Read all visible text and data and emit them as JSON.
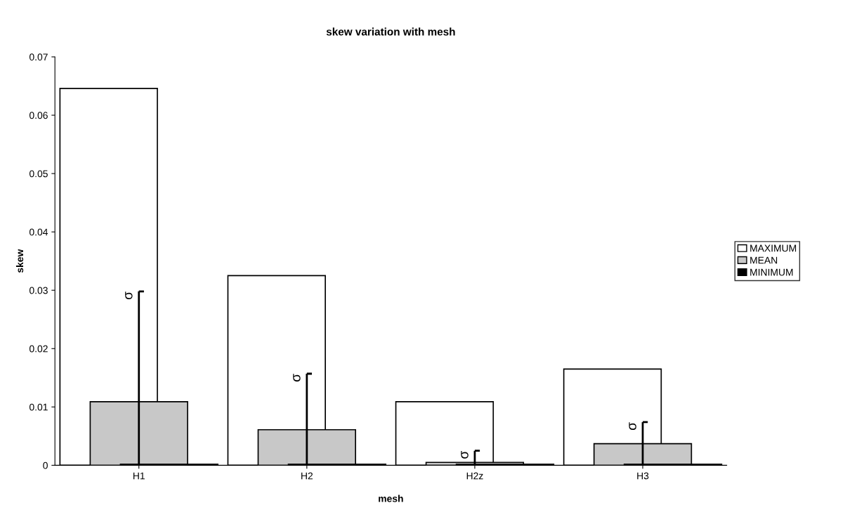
{
  "chart_data": {
    "type": "bar",
    "title": "skew variation with mesh",
    "xlabel": "mesh",
    "ylabel": "skew",
    "categories": [
      "H1",
      "H2",
      "H2z",
      "H3"
    ],
    "series": [
      {
        "name": "MAXIMUM",
        "color": "#ffffff",
        "values": [
          0.0646,
          0.0325,
          0.0109,
          0.0165
        ]
      },
      {
        "name": "MEAN",
        "color": "#c8c8c8",
        "values": [
          0.0109,
          0.0061,
          0.0005,
          0.0037
        ],
        "errors": [
          [
            0,
            0.0298
          ],
          [
            0,
            0.0157
          ],
          [
            0,
            0.0025
          ],
          [
            0,
            0.0074
          ]
        ]
      },
      {
        "name": "MINIMUM",
        "color": "#000000",
        "values": [
          0.0002,
          0.0002,
          0.0002,
          0.0002
        ]
      }
    ],
    "annotations": [
      {
        "text": "σ",
        "x": "H1",
        "y": 0.0298
      },
      {
        "text": "σ",
        "x": "H2",
        "y": 0.0157
      },
      {
        "text": "σ",
        "x": "H2z",
        "y": 0.0025
      },
      {
        "text": "σ",
        "x": "H3",
        "y": 0.0074
      }
    ],
    "ylim": [
      0,
      0.07
    ],
    "yticks": [
      0,
      0.01,
      0.02,
      0.03,
      0.04,
      0.05,
      0.06,
      0.07
    ],
    "grid": false,
    "legend": "right"
  }
}
